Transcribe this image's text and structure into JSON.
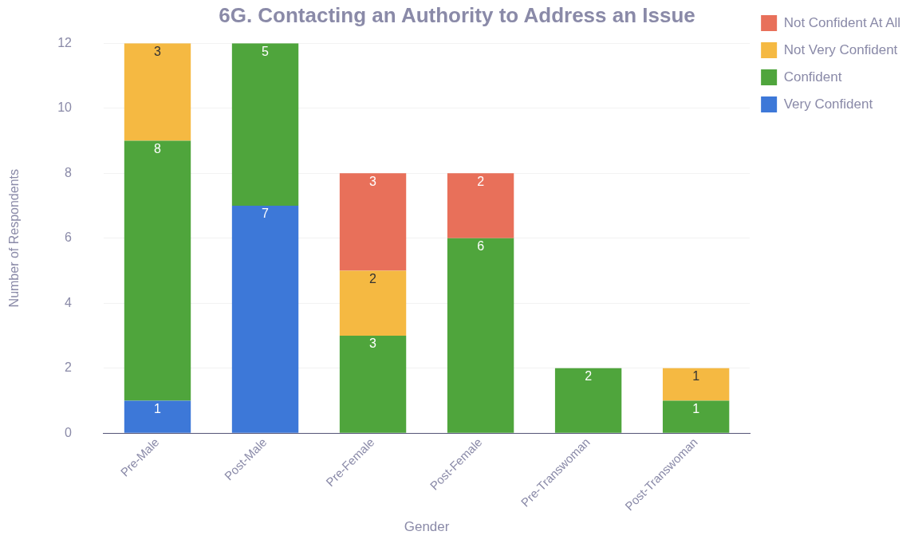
{
  "chart_data": {
    "type": "bar",
    "title": "6G. Contacting an Authority to Address an Issue",
    "xlabel": "Gender",
    "ylabel": "Number of Respondents",
    "categories": [
      "Pre-Male",
      "Post-Male",
      "Pre-Female",
      "Post-Female",
      "Pre-Transwoman",
      "Post-Transwoman"
    ],
    "stacked": true,
    "series": [
      {
        "name": "Very Confident",
        "color": "#3d78d8",
        "values": [
          1,
          7,
          null,
          null,
          null,
          null
        ]
      },
      {
        "name": "Confident",
        "color": "#4fa53c",
        "values": [
          8,
          5,
          3,
          6,
          2,
          1
        ]
      },
      {
        "name": "Not Very Confident",
        "color": "#f5b942",
        "values": [
          3,
          null,
          2,
          null,
          null,
          1
        ]
      },
      {
        "name": "Not Confident At All",
        "color": "#e8705a",
        "values": [
          null,
          null,
          3,
          2,
          null,
          null
        ]
      }
    ],
    "ylim": [
      0,
      12
    ],
    "yticks": [
      0,
      2,
      4,
      6,
      8,
      10,
      12
    ],
    "grid": "y",
    "legend": "top right",
    "data_labels": true
  }
}
